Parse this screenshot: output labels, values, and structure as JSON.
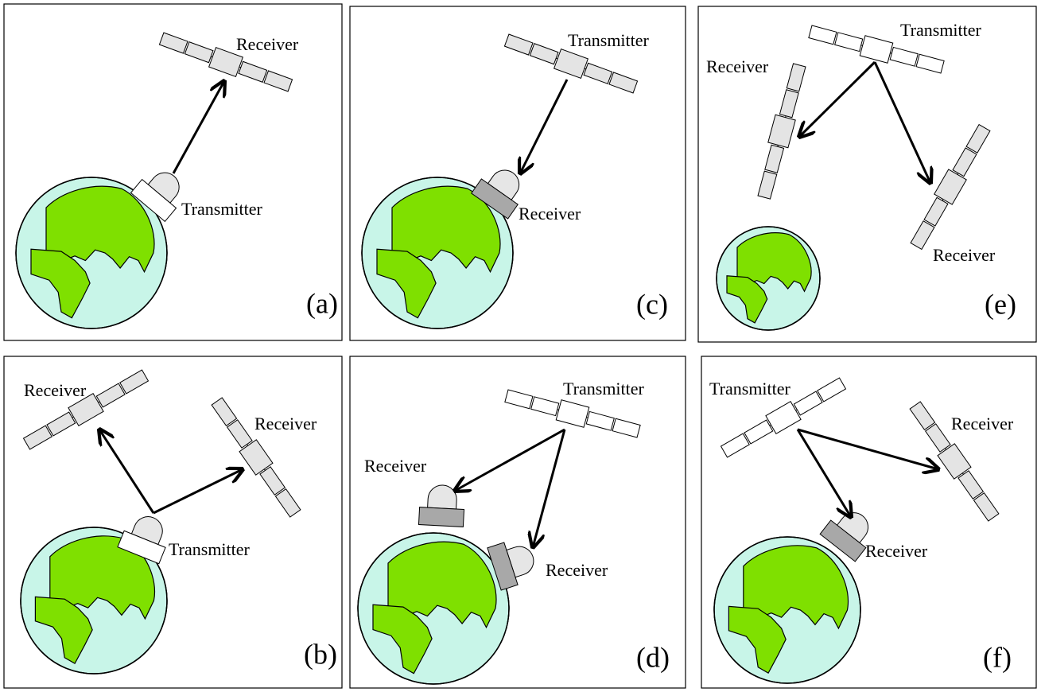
{
  "panels": [
    {
      "tag": "(a)",
      "labels": [
        "Receiver",
        "Transmitter"
      ]
    },
    {
      "tag": "(b)",
      "labels": [
        "Receiver",
        "Receiver",
        "Transmitter"
      ]
    },
    {
      "tag": "(c)",
      "labels": [
        "Transmitter",
        "Receiver"
      ]
    },
    {
      "tag": "(d)",
      "labels": [
        "Transmitter",
        "Receiver",
        "Receiver"
      ]
    },
    {
      "tag": "(e)",
      "labels": [
        "Transmitter",
        "Receiver",
        "Receiver"
      ]
    },
    {
      "tag": "(f)",
      "labels": [
        "Transmitter",
        "Receiver",
        "Receiver"
      ]
    }
  ]
}
